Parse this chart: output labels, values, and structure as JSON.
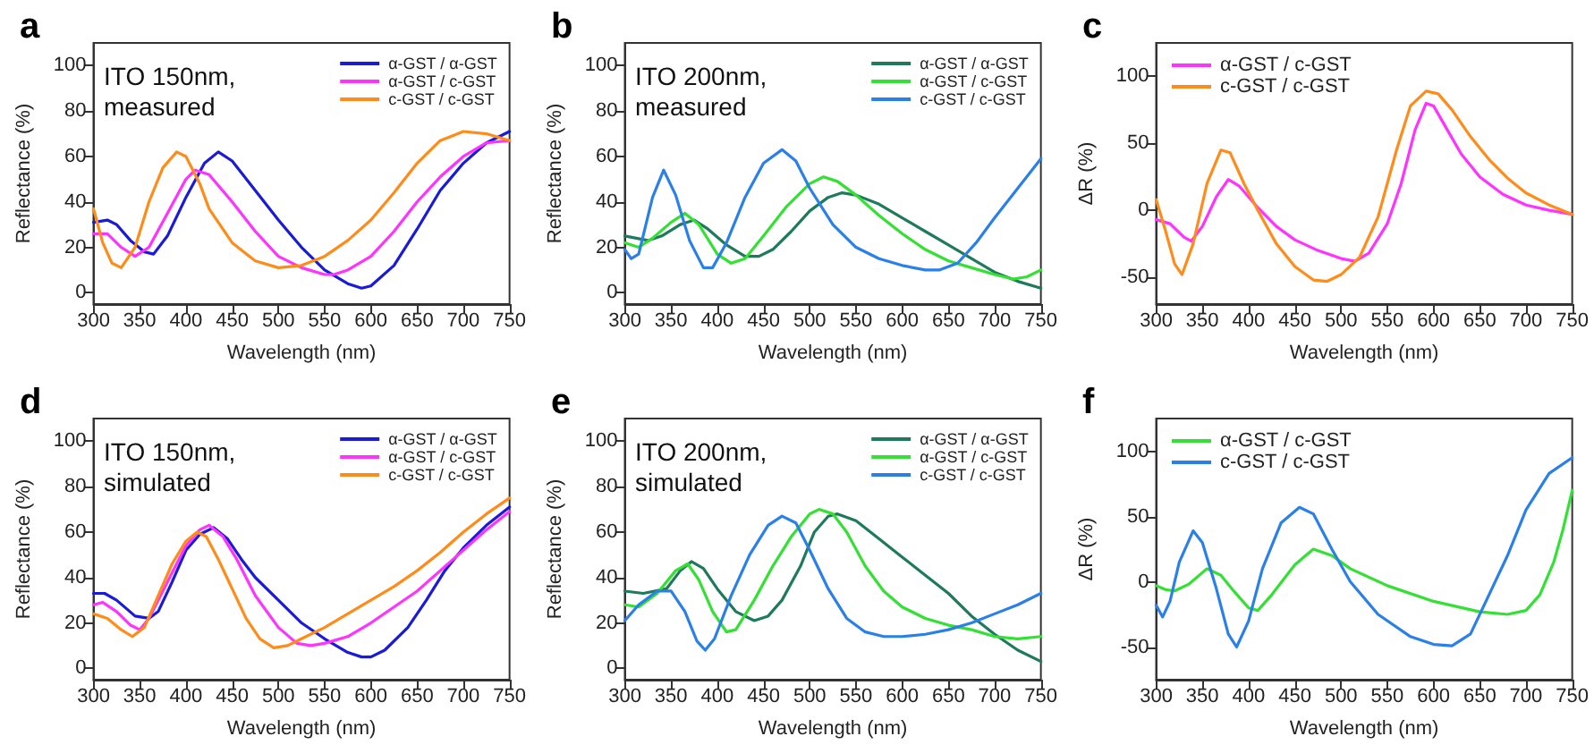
{
  "chart_data": [
    {
      "type": "line",
      "title": "a",
      "annotations": [
        "ITO 150nm,\nmeasured"
      ],
      "xlabel": "Wavelength (nm)",
      "ylabel": "Reflectance (%)",
      "xlim": [
        300,
        750
      ],
      "xticks": [
        300,
        350,
        400,
        450,
        500,
        550,
        600,
        650,
        700,
        750
      ],
      "ylim": [
        -5,
        110
      ],
      "yticks": [
        0,
        20,
        40,
        60,
        80,
        100
      ],
      "grid": false,
      "legend": "top right",
      "marker": "none",
      "line_style": "solid",
      "series": [
        {
          "name": "α-GST / α-GST",
          "color": "#1a1ad9",
          "x": [
            300,
            315,
            325,
            340,
            355,
            365,
            380,
            400,
            420,
            435,
            450,
            475,
            500,
            525,
            550,
            575,
            590,
            600,
            625,
            650,
            675,
            700,
            725,
            750
          ],
          "values": [
            31,
            32,
            30,
            23,
            18,
            17,
            25,
            42,
            57,
            62,
            58,
            45,
            32,
            20,
            10,
            4,
            2,
            3,
            12,
            28,
            45,
            57,
            66,
            71
          ]
        },
        {
          "name": "α-GST / c-GST",
          "color": "#ff33ff",
          "x": [
            300,
            315,
            330,
            345,
            360,
            380,
            400,
            410,
            425,
            450,
            475,
            500,
            525,
            550,
            560,
            575,
            600,
            625,
            650,
            675,
            700,
            725,
            750
          ],
          "values": [
            26,
            26,
            20,
            16,
            20,
            35,
            50,
            54,
            52,
            40,
            27,
            16,
            11,
            8,
            8,
            10,
            16,
            27,
            40,
            51,
            60,
            66,
            67
          ]
        },
        {
          "name": "c-GST / c-GST",
          "color": "#ff8c1a",
          "x": [
            300,
            310,
            320,
            330,
            345,
            360,
            375,
            390,
            400,
            415,
            425,
            450,
            475,
            500,
            525,
            550,
            575,
            600,
            625,
            650,
            675,
            700,
            725,
            750
          ],
          "values": [
            37,
            22,
            13,
            11,
            20,
            40,
            55,
            62,
            60,
            48,
            37,
            22,
            14,
            11,
            12,
            16,
            23,
            32,
            44,
            57,
            67,
            71,
            70,
            67
          ]
        }
      ]
    },
    {
      "type": "line",
      "title": "b",
      "annotations": [
        "ITO 200nm,\nmeasured"
      ],
      "xlabel": "Wavelength (nm)",
      "ylabel": "Reflectance (%)",
      "xlim": [
        300,
        750
      ],
      "xticks": [
        300,
        350,
        400,
        450,
        500,
        550,
        600,
        650,
        700,
        750
      ],
      "ylim": [
        -5,
        110
      ],
      "yticks": [
        0,
        20,
        40,
        60,
        80,
        100
      ],
      "grid": false,
      "legend": "top right",
      "marker": "none",
      "line_style": "solid",
      "series": [
        {
          "name": "α-GST / α-GST",
          "color": "#1f7a5c",
          "x": [
            300,
            325,
            340,
            360,
            375,
            390,
            410,
            430,
            445,
            460,
            480,
            500,
            520,
            535,
            550,
            575,
            600,
            625,
            650,
            675,
            700,
            725,
            750
          ],
          "values": [
            25,
            23,
            25,
            30,
            32,
            28,
            21,
            16,
            16,
            19,
            27,
            36,
            42,
            44,
            43,
            39,
            33,
            27,
            21,
            15,
            9,
            5,
            2
          ]
        },
        {
          "name": "α-GST / c-GST",
          "color": "#33e033",
          "x": [
            300,
            315,
            330,
            350,
            365,
            380,
            400,
            415,
            430,
            450,
            475,
            500,
            515,
            530,
            550,
            575,
            600,
            625,
            650,
            675,
            700,
            720,
            735,
            750
          ],
          "values": [
            22,
            20,
            24,
            31,
            35,
            30,
            17,
            13,
            15,
            25,
            38,
            48,
            51,
            49,
            43,
            34,
            26,
            19,
            14,
            11,
            8,
            6,
            7,
            10
          ]
        },
        {
          "name": "c-GST / c-GST",
          "color": "#2a80e8",
          "x": [
            300,
            307,
            315,
            330,
            342,
            355,
            370,
            385,
            395,
            410,
            430,
            450,
            470,
            485,
            500,
            525,
            550,
            575,
            600,
            625,
            640,
            660,
            680,
            700,
            725,
            750
          ],
          "values": [
            19,
            15,
            17,
            42,
            54,
            43,
            23,
            11,
            11,
            22,
            42,
            57,
            63,
            58,
            46,
            30,
            20,
            15,
            12,
            10,
            10,
            13,
            22,
            33,
            46,
            59
          ]
        }
      ]
    },
    {
      "type": "line",
      "title": "c",
      "xlabel": "Wavelength (nm)",
      "ylabel": "ΔR (%)",
      "xlim": [
        300,
        750
      ],
      "xticks": [
        300,
        350,
        400,
        450,
        500,
        550,
        600,
        650,
        700,
        750
      ],
      "ylim": [
        -70,
        125
      ],
      "yticks": [
        -50,
        0,
        50,
        100
      ],
      "grid": false,
      "legend": "top left",
      "marker": "none",
      "line_style": "solid",
      "series": [
        {
          "name": "α-GST / c-GST",
          "color": "#ff33ff",
          "x": [
            300,
            315,
            330,
            338,
            350,
            365,
            378,
            390,
            410,
            430,
            450,
            475,
            500,
            515,
            530,
            550,
            565,
            580,
            592,
            600,
            615,
            630,
            650,
            675,
            700,
            725,
            750
          ],
          "values": [
            -7,
            -10,
            -20,
            -23,
            -12,
            10,
            23,
            18,
            2,
            -12,
            -22,
            -30,
            -36,
            -38,
            -32,
            -10,
            20,
            60,
            80,
            78,
            60,
            42,
            25,
            12,
            4,
            0,
            -3
          ]
        },
        {
          "name": "c-GST / c-GST",
          "color": "#ff8c1a",
          "x": [
            300,
            310,
            320,
            328,
            340,
            355,
            370,
            380,
            395,
            410,
            430,
            450,
            470,
            485,
            500,
            520,
            540,
            560,
            575,
            592,
            605,
            620,
            640,
            660,
            680,
            700,
            725,
            750
          ],
          "values": [
            8,
            -15,
            -40,
            -48,
            -25,
            20,
            45,
            43,
            20,
            0,
            -25,
            -42,
            -52,
            -53,
            -48,
            -35,
            -5,
            45,
            78,
            89,
            87,
            75,
            55,
            38,
            24,
            13,
            4,
            -3
          ]
        }
      ]
    },
    {
      "type": "line",
      "title": "d",
      "annotations": [
        "ITO 150nm,\nsimulated"
      ],
      "xlabel": "Wavelength (nm)",
      "ylabel": "Reflectance (%)",
      "xlim": [
        300,
        750
      ],
      "xticks": [
        300,
        350,
        400,
        450,
        500,
        550,
        600,
        650,
        700,
        750
      ],
      "ylim": [
        -5,
        110
      ],
      "yticks": [
        0,
        20,
        40,
        60,
        80,
        100
      ],
      "grid": false,
      "legend": "top right",
      "marker": "none",
      "line_style": "solid",
      "series": [
        {
          "name": "α-GST / α-GST",
          "color": "#1a1ad9",
          "x": [
            300,
            312,
            325,
            345,
            360,
            370,
            385,
            400,
            415,
            430,
            445,
            460,
            475,
            500,
            525,
            550,
            575,
            590,
            600,
            615,
            640,
            660,
            680,
            700,
            725,
            750
          ],
          "values": [
            33,
            33,
            30,
            23,
            22,
            25,
            38,
            52,
            59,
            62,
            57,
            48,
            40,
            30,
            20,
            13,
            7,
            5,
            5,
            8,
            18,
            30,
            43,
            53,
            63,
            71
          ]
        },
        {
          "name": "α-GST / c-GST",
          "color": "#ff33ff",
          "x": [
            300,
            310,
            325,
            340,
            350,
            360,
            380,
            400,
            415,
            425,
            440,
            455,
            475,
            500,
            520,
            535,
            550,
            575,
            600,
            625,
            650,
            675,
            700,
            725,
            750
          ],
          "values": [
            28,
            29,
            25,
            19,
            17,
            22,
            38,
            54,
            61,
            63,
            58,
            48,
            32,
            18,
            11,
            10,
            11,
            14,
            20,
            27,
            34,
            43,
            52,
            61,
            69
          ]
        },
        {
          "name": "c-GST / c-GST",
          "color": "#ff8c1a",
          "x": [
            300,
            315,
            330,
            342,
            355,
            370,
            385,
            400,
            412,
            422,
            435,
            450,
            465,
            480,
            495,
            510,
            525,
            550,
            575,
            600,
            625,
            650,
            675,
            700,
            725,
            750
          ],
          "values": [
            24,
            22,
            17,
            14,
            18,
            32,
            46,
            56,
            60,
            58,
            48,
            35,
            22,
            13,
            9,
            10,
            13,
            18,
            24,
            30,
            36,
            43,
            51,
            60,
            68,
            75
          ]
        }
      ]
    },
    {
      "type": "line",
      "title": "e",
      "annotations": [
        "ITO 200nm,\nsimulated"
      ],
      "xlabel": "Wavelength (nm)",
      "ylabel": "Reflectance (%)",
      "xlim": [
        300,
        750
      ],
      "xticks": [
        300,
        350,
        400,
        450,
        500,
        550,
        600,
        650,
        700,
        750
      ],
      "ylim": [
        -5,
        110
      ],
      "yticks": [
        0,
        20,
        40,
        60,
        80,
        100
      ],
      "grid": false,
      "legend": "top right",
      "marker": "none",
      "line_style": "solid",
      "series": [
        {
          "name": "α-GST / α-GST",
          "color": "#1f7a5c",
          "x": [
            300,
            320,
            345,
            360,
            372,
            385,
            400,
            420,
            440,
            455,
            470,
            490,
            505,
            520,
            530,
            550,
            575,
            600,
            625,
            650,
            675,
            700,
            725,
            750
          ],
          "values": [
            34,
            33,
            35,
            43,
            47,
            44,
            35,
            25,
            21,
            23,
            30,
            45,
            60,
            67,
            68,
            65,
            57,
            49,
            41,
            33,
            23,
            15,
            8,
            3
          ]
        },
        {
          "name": "α-GST / c-GST",
          "color": "#33e033",
          "x": [
            300,
            315,
            335,
            355,
            368,
            380,
            395,
            410,
            420,
            440,
            460,
            480,
            500,
            510,
            525,
            540,
            560,
            580,
            600,
            625,
            650,
            675,
            700,
            725,
            750
          ],
          "values": [
            28,
            27,
            33,
            43,
            46,
            39,
            25,
            16,
            17,
            30,
            45,
            58,
            68,
            70,
            68,
            60,
            45,
            34,
            27,
            22,
            19,
            17,
            14,
            13,
            14
          ]
        },
        {
          "name": "c-GST / c-GST",
          "color": "#2a80e8",
          "x": [
            300,
            315,
            335,
            350,
            365,
            378,
            387,
            397,
            415,
            435,
            455,
            470,
            485,
            500,
            520,
            540,
            560,
            580,
            600,
            625,
            650,
            675,
            700,
            725,
            750
          ],
          "values": [
            21,
            28,
            34,
            34,
            25,
            12,
            8,
            13,
            32,
            50,
            63,
            67,
            64,
            52,
            35,
            22,
            16,
            14,
            14,
            15,
            17,
            20,
            24,
            28,
            33
          ]
        }
      ]
    },
    {
      "type": "line",
      "title": "f",
      "xlabel": "Wavelength (nm)",
      "ylabel": "ΔR (%)",
      "xlim": [
        300,
        750
      ],
      "xticks": [
        300,
        350,
        400,
        450,
        500,
        550,
        600,
        650,
        700,
        750
      ],
      "ylim": [
        -75,
        125
      ],
      "yticks": [
        -50,
        0,
        50,
        100
      ],
      "grid": false,
      "legend": "top left",
      "marker": "none",
      "line_style": "solid",
      "series": [
        {
          "name": "α-GST / c-GST",
          "color": "#33e033",
          "x": [
            300,
            310,
            320,
            335,
            355,
            370,
            385,
            400,
            410,
            425,
            450,
            470,
            490,
            510,
            550,
            600,
            650,
            680,
            700,
            715,
            730,
            740,
            750
          ],
          "values": [
            -3,
            -6,
            -7,
            -2,
            10,
            5,
            -8,
            -20,
            -22,
            -10,
            13,
            25,
            20,
            10,
            -3,
            -15,
            -23,
            -25,
            -22,
            -10,
            15,
            40,
            70
          ]
        },
        {
          "name": "c-GST / c-GST",
          "color": "#2a80e8",
          "x": [
            300,
            307,
            315,
            325,
            340,
            350,
            365,
            378,
            387,
            400,
            415,
            435,
            455,
            470,
            490,
            510,
            540,
            575,
            600,
            620,
            640,
            660,
            680,
            700,
            725,
            750
          ],
          "values": [
            -18,
            -27,
            -15,
            15,
            39,
            30,
            -5,
            -40,
            -50,
            -30,
            10,
            45,
            57,
            52,
            25,
            0,
            -25,
            -42,
            -48,
            -49,
            -40,
            -10,
            20,
            55,
            83,
            95
          ]
        }
      ]
    }
  ]
}
